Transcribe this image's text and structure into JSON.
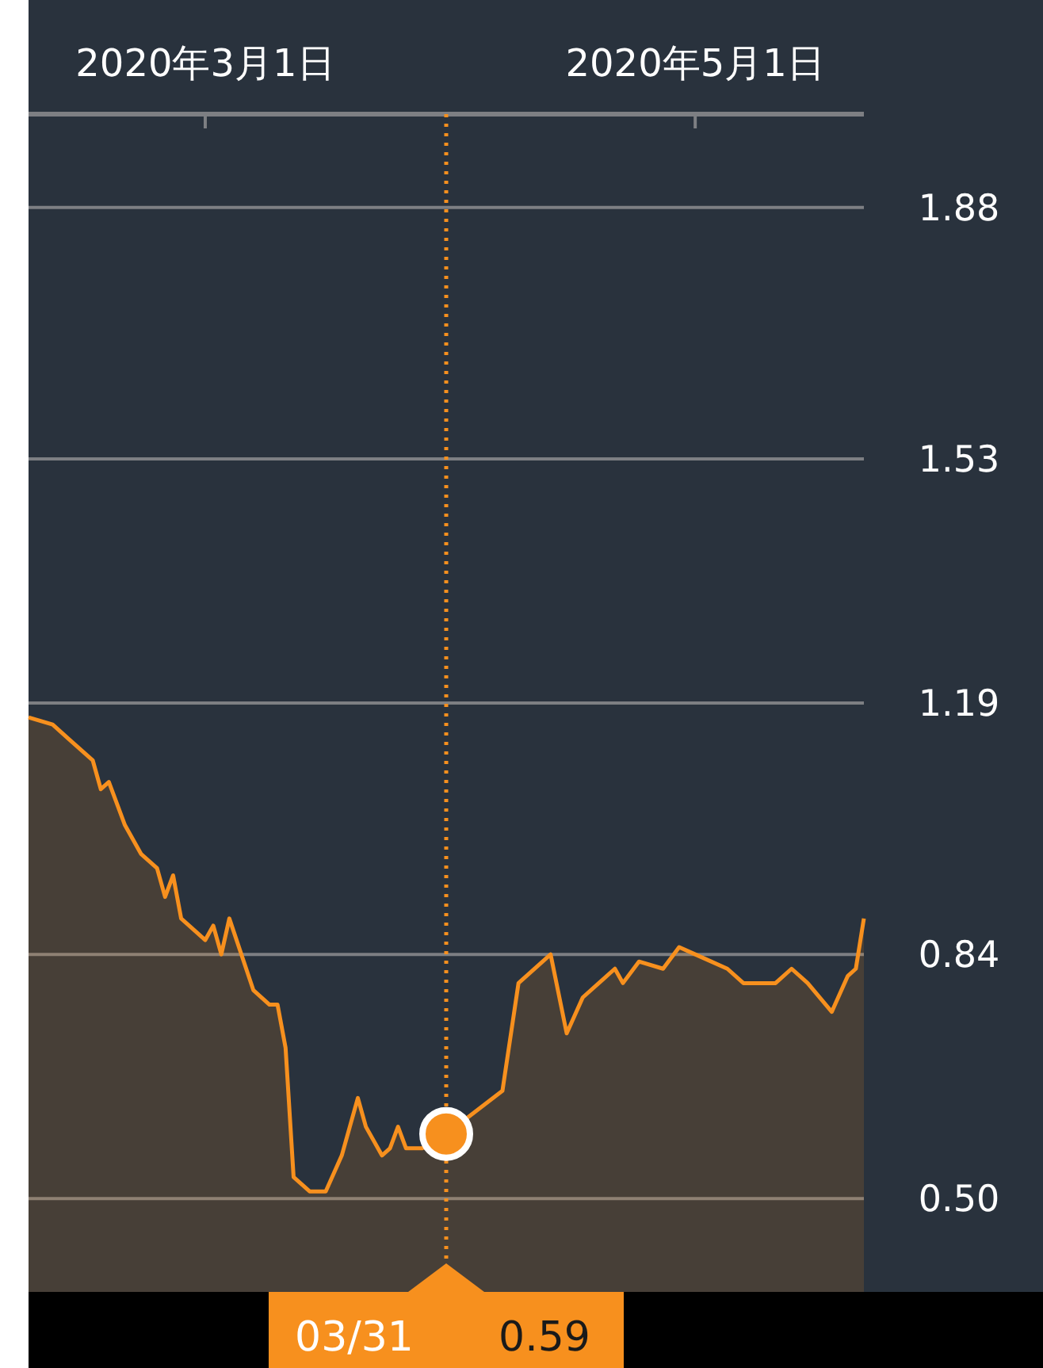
{
  "chart_data": {
    "type": "area",
    "x": [
      "2020-02-08",
      "2020-02-11",
      "2020-02-13",
      "2020-02-16",
      "2020-02-17",
      "2020-02-18",
      "2020-02-20",
      "2020-02-22",
      "2020-02-24",
      "2020-02-25",
      "2020-02-26",
      "2020-02-27",
      "2020-03-01",
      "2020-03-02",
      "2020-03-03",
      "2020-03-04",
      "2020-03-07",
      "2020-03-09",
      "2020-03-10",
      "2020-03-11",
      "2020-03-12",
      "2020-03-14",
      "2020-03-16",
      "2020-03-18",
      "2020-03-20",
      "2020-03-21",
      "2020-03-23",
      "2020-03-24",
      "2020-03-25",
      "2020-03-26",
      "2020-03-28",
      "2020-03-31",
      "2020-04-07",
      "2020-04-09",
      "2020-04-13",
      "2020-04-15",
      "2020-04-17",
      "2020-04-19",
      "2020-04-21",
      "2020-04-22",
      "2020-04-24",
      "2020-04-27",
      "2020-04-29",
      "2020-05-01",
      "2020-05-05",
      "2020-05-07",
      "2020-05-11",
      "2020-05-13",
      "2020-05-15",
      "2020-05-18",
      "2020-05-20",
      "2020-05-21",
      "2020-05-22"
    ],
    "series": [
      {
        "color": "#f7901e",
        "values": [
          1.17,
          1.16,
          1.14,
          1.11,
          1.07,
          1.08,
          1.02,
          0.98,
          0.96,
          0.92,
          0.95,
          0.89,
          0.86,
          0.88,
          0.84,
          0.89,
          0.79,
          0.77,
          0.77,
          0.71,
          0.53,
          0.51,
          0.51,
          0.56,
          0.64,
          0.6,
          0.56,
          0.57,
          0.6,
          0.57,
          0.57,
          0.59,
          0.65,
          0.8,
          0.84,
          0.73,
          0.78,
          0.8,
          0.82,
          0.8,
          0.83,
          0.82,
          0.85,
          0.84,
          0.82,
          0.8,
          0.8,
          0.82,
          0.8,
          0.76,
          0.81,
          0.82,
          0.89
        ]
      }
    ],
    "xlim": [
      "2020-02-08",
      "2020-05-22"
    ],
    "xticks": [
      {
        "value": "2020-03-01",
        "label": "2020年3月1日"
      },
      {
        "value": "2020-05-01",
        "label": "2020年5月1日"
      }
    ],
    "ylim": [
      0.37,
      2.01
    ],
    "yticks": [
      {
        "value": 0.5,
        "label": "0.50"
      },
      0.84,
      1.19,
      1.53,
      1.88
    ],
    "grid": "y",
    "ref_lines": [
      {
        "axis": "x",
        "value": "2020-03-31",
        "label": "03/31",
        "color": "#f7901e",
        "line_style": "dotted"
      }
    ],
    "annotations": [
      "0.59"
    ]
  }
}
